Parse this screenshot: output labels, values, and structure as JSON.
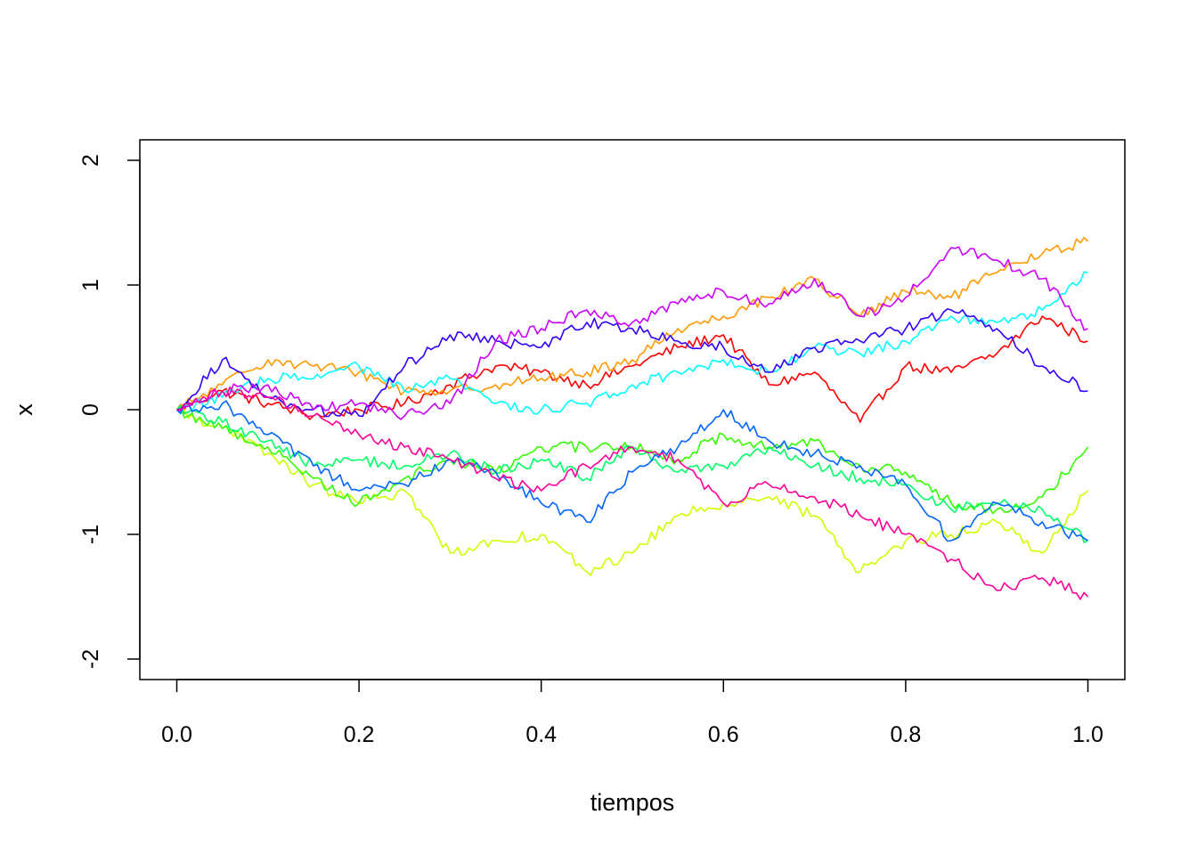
{
  "chart_data": {
    "type": "line",
    "title": "",
    "xlabel": "tiempos",
    "ylabel": "x",
    "xlim": [
      0,
      1
    ],
    "ylim": [
      -2,
      2
    ],
    "x_ticks": [
      0.0,
      0.2,
      0.4,
      0.6,
      0.8,
      1.0
    ],
    "x_tick_labels": [
      "0.0",
      "0.2",
      "0.4",
      "0.6",
      "0.8",
      "1.0"
    ],
    "y_ticks": [
      -2,
      -1,
      0,
      1,
      2
    ],
    "y_tick_labels": [
      "-2",
      "-1",
      "0",
      "1",
      "2"
    ],
    "grid": false,
    "legend": "none",
    "x": [
      0.0,
      0.05,
      0.1,
      0.15,
      0.2,
      0.25,
      0.3,
      0.35,
      0.4,
      0.45,
      0.5,
      0.55,
      0.6,
      0.65,
      0.7,
      0.75,
      0.8,
      0.85,
      0.9,
      0.95,
      1.0
    ],
    "series": [
      {
        "color": "#ff0000",
        "values": [
          0.0,
          0.15,
          0.05,
          -0.05,
          0.0,
          0.05,
          0.2,
          0.35,
          0.3,
          0.2,
          0.35,
          0.5,
          0.6,
          0.2,
          0.3,
          -0.1,
          0.35,
          0.3,
          0.45,
          0.75,
          0.55
        ]
      },
      {
        "color": "#ff9900",
        "values": [
          0.0,
          0.2,
          0.4,
          0.35,
          0.3,
          0.15,
          0.15,
          0.2,
          0.25,
          0.3,
          0.4,
          0.65,
          0.75,
          0.9,
          1.05,
          0.75,
          0.95,
          0.9,
          1.1,
          1.25,
          1.35
        ]
      },
      {
        "color": "#ccff00",
        "values": [
          0.0,
          -0.15,
          -0.35,
          -0.6,
          -0.75,
          -0.65,
          -1.15,
          -1.05,
          -1.0,
          -1.3,
          -1.15,
          -0.85,
          -0.75,
          -0.7,
          -0.85,
          -1.3,
          -1.05,
          -1.0,
          -0.9,
          -1.15,
          -0.65
        ]
      },
      {
        "color": "#33ff00",
        "values": [
          0.0,
          -0.15,
          -0.3,
          -0.55,
          -0.75,
          -0.55,
          -0.4,
          -0.5,
          -0.3,
          -0.3,
          -0.3,
          -0.4,
          -0.2,
          -0.3,
          -0.25,
          -0.45,
          -0.5,
          -0.75,
          -0.8,
          -0.7,
          -0.3
        ]
      },
      {
        "color": "#00ff66",
        "values": [
          0.0,
          -0.1,
          -0.25,
          -0.45,
          -0.4,
          -0.45,
          -0.35,
          -0.5,
          -0.4,
          -0.55,
          -0.3,
          -0.5,
          -0.45,
          -0.3,
          -0.45,
          -0.55,
          -0.6,
          -0.8,
          -0.75,
          -0.8,
          -1.05
        ]
      },
      {
        "color": "#00ffff",
        "values": [
          0.0,
          0.1,
          0.25,
          0.25,
          0.35,
          0.15,
          0.25,
          0.05,
          0.0,
          0.05,
          0.2,
          0.3,
          0.4,
          0.3,
          0.5,
          0.45,
          0.55,
          0.75,
          0.7,
          0.8,
          1.1
        ]
      },
      {
        "color": "#0066ff",
        "values": [
          0.0,
          0.05,
          -0.2,
          -0.45,
          -0.65,
          -0.6,
          -0.4,
          -0.5,
          -0.75,
          -0.9,
          -0.5,
          -0.3,
          0.0,
          -0.25,
          -0.35,
          -0.45,
          -0.6,
          -1.05,
          -0.75,
          -0.9,
          -1.05
        ]
      },
      {
        "color": "#3300ff",
        "values": [
          0.0,
          0.4,
          0.1,
          0.0,
          -0.05,
          0.35,
          0.6,
          0.55,
          0.5,
          0.7,
          0.65,
          0.55,
          0.5,
          0.3,
          0.5,
          0.55,
          0.65,
          0.8,
          0.65,
          0.35,
          0.15
        ]
      },
      {
        "color": "#cc00ff",
        "values": [
          0.0,
          0.15,
          0.2,
          0.0,
          0.05,
          -0.05,
          0.05,
          0.55,
          0.65,
          0.8,
          0.7,
          0.85,
          0.95,
          0.85,
          1.05,
          0.75,
          0.9,
          1.3,
          1.2,
          1.05,
          0.65
        ]
      },
      {
        "color": "#ff0099",
        "values": [
          0.0,
          0.15,
          0.1,
          -0.05,
          -0.2,
          -0.3,
          -0.4,
          -0.55,
          -0.65,
          -0.45,
          -0.3,
          -0.4,
          -0.75,
          -0.6,
          -0.7,
          -0.85,
          -1.0,
          -1.2,
          -1.45,
          -1.35,
          -1.5
        ]
      }
    ]
  }
}
